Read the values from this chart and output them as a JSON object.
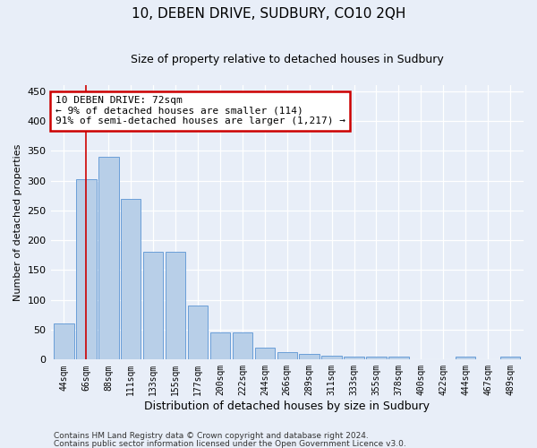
{
  "title": "10, DEBEN DRIVE, SUDBURY, CO10 2QH",
  "subtitle": "Size of property relative to detached houses in Sudbury",
  "xlabel": "Distribution of detached houses by size in Sudbury",
  "ylabel": "Number of detached properties",
  "bar_labels": [
    "44sqm",
    "66sqm",
    "88sqm",
    "111sqm",
    "133sqm",
    "155sqm",
    "177sqm",
    "200sqm",
    "222sqm",
    "244sqm",
    "266sqm",
    "289sqm",
    "311sqm",
    "333sqm",
    "355sqm",
    "378sqm",
    "400sqm",
    "422sqm",
    "444sqm",
    "467sqm",
    "489sqm"
  ],
  "bar_values": [
    60,
    302,
    340,
    270,
    180,
    180,
    90,
    45,
    45,
    20,
    13,
    10,
    6,
    5,
    5,
    5,
    0,
    0,
    5,
    0,
    5
  ],
  "bar_color": "#b8cfe8",
  "bar_edge_color": "#6a9fd8",
  "vline_x": 1,
  "vline_color": "#cc0000",
  "annotation_text": "10 DEBEN DRIVE: 72sqm\n← 9% of detached houses are smaller (114)\n91% of semi-detached houses are larger (1,217) →",
  "annotation_box_color": "#ffffff",
  "annotation_box_edge": "#cc0000",
  "ylim": [
    0,
    460
  ],
  "yticks": [
    0,
    50,
    100,
    150,
    200,
    250,
    300,
    350,
    400,
    450
  ],
  "bg_color": "#e8eef8",
  "plot_bg_color": "#e8eef8",
  "footer1": "Contains HM Land Registry data © Crown copyright and database right 2024.",
  "footer2": "Contains public sector information licensed under the Open Government Licence v3.0."
}
